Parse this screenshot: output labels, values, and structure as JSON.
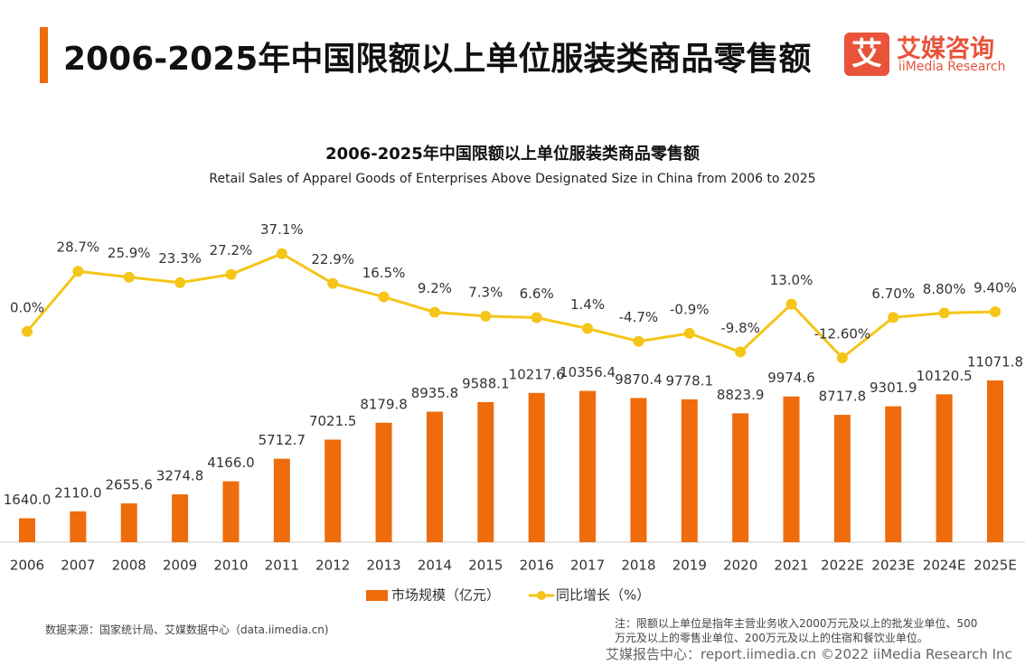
{
  "header": {
    "title": "2006-2025年中国限额以上单位服装类商品零售额",
    "logo_cn": "艾媒咨询",
    "logo_en": "iiMedia Research",
    "logo_mark": "艾"
  },
  "chart_data": {
    "type": "bar-line",
    "title": "2006-2025年中国限额以上单位服装类商品零售额",
    "subtitle": "Retail Sales of Apparel Goods of Enterprises Above Designated Size in China from 2006 to 2025",
    "categories": [
      "2006",
      "2007",
      "2008",
      "2009",
      "2010",
      "2011",
      "2012",
      "2013",
      "2014",
      "2015",
      "2016",
      "2017",
      "2018",
      "2019",
      "2020",
      "2021",
      "2022E",
      "2023E",
      "2024E",
      "2025E"
    ],
    "series": [
      {
        "name": "市场规模（亿元）",
        "color": "#ee6c0c",
        "type": "bar",
        "values": [
          1640.0,
          2110.0,
          2655.6,
          3274.8,
          4166.0,
          5712.7,
          7021.5,
          8179.8,
          8935.8,
          9588.1,
          10217.6,
          10356.4,
          9870.4,
          9778.1,
          8823.9,
          9974.6,
          8717.8,
          9301.9,
          10120.5,
          11071.8
        ],
        "value_labels": [
          "1640.0",
          "2110.0",
          "2655.6",
          "3274.8",
          "4166.0",
          "5712.7",
          "7021.5",
          "8179.8",
          "8935.8",
          "9588.1",
          "10217.6",
          "10356.4",
          "9870.4",
          "9778.1",
          "8823.9",
          "9974.6",
          "8717.8",
          "9301.9",
          "10120.5",
          "11071.8"
        ]
      },
      {
        "name": "同比增长（%）",
        "color": "#f5c518",
        "type": "line",
        "axis": "y2",
        "values": [
          0.0,
          28.7,
          25.9,
          23.3,
          27.2,
          37.1,
          22.9,
          16.5,
          9.2,
          7.3,
          6.6,
          1.4,
          -4.7,
          -0.9,
          -9.8,
          13.0,
          -12.6,
          6.7,
          8.8,
          9.4
        ],
        "value_labels": [
          "0.0%",
          "28.7%",
          "25.9%",
          "23.3%",
          "27.2%",
          "37.1%",
          "22.9%",
          "16.5%",
          "9.2%",
          "7.3%",
          "6.6%",
          "1.4%",
          "-4.7%",
          "-0.9%",
          "-9.8%",
          "13.0%",
          "-12.60%",
          "6.70%",
          "8.80%",
          "9.40%"
        ]
      }
    ],
    "ylim": [
      0,
      12000
    ],
    "y2lim": [
      -60,
      40
    ],
    "grid": false,
    "legend": "bottom"
  },
  "footer": {
    "source": "数据来源：国家统计局、艾媒数据中心（data.iimedia.cn)",
    "note": "注：限额以上单位是指年主营业务收入2000万元及以上的批发业单位、500万元及以上的零售业单位、200万元及以上的住宿和餐饮业单位。",
    "credit": "艾媒报告中心：report.iimedia.cn  ©2022  iiMedia Research  Inc"
  }
}
